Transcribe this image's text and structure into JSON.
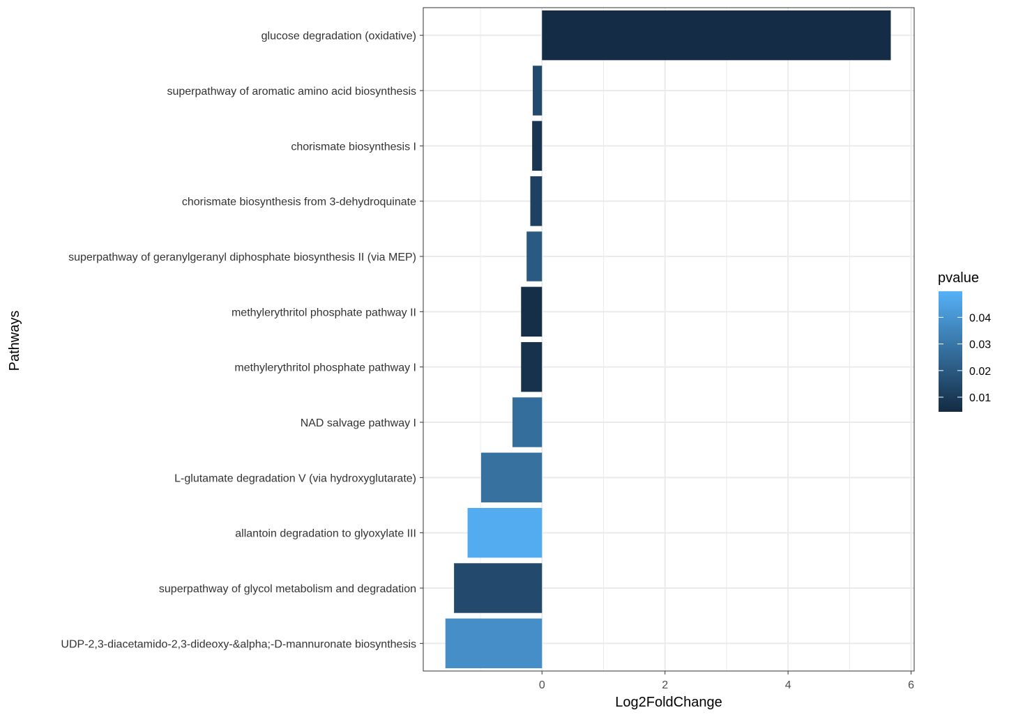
{
  "chart_data": {
    "type": "bar",
    "orientation": "horizontal",
    "xlabel": "Log2FoldChange",
    "ylabel": "Pathways",
    "xlim": [
      -1.93,
      6.05
    ],
    "xticks": [
      0,
      2,
      4,
      6
    ],
    "grid": true,
    "legend": {
      "title": "pvalue",
      "placement": "right",
      "range": [
        0.0045,
        0.0498
      ],
      "breaks": [
        0.01,
        0.02,
        0.03,
        0.04
      ],
      "break_labels": [
        "0.01",
        "0.02",
        "0.03",
        "0.04"
      ],
      "color_low": "#132b43",
      "color_high": "#56b1f7"
    },
    "categories": [
      "glucose degradation (oxidative)",
      "superpathway of aromatic amino acid biosynthesis",
      "chorismate biosynthesis I",
      "chorismate biosynthesis from 3-dehydroquinate",
      "superpathway of geranylgeranyl diphosphate biosynthesis II (via MEP)",
      "methylerythritol phosphate pathway II",
      "methylerythritol phosphate pathway I",
      "NAD salvage pathway I",
      "L-glutamate degradation V (via hydroxyglutarate)",
      "allantoin degradation to glyoxylate III",
      "superpathway of glycol metabolism and degradation",
      "UDP-2,3-diacetamido-2,3-dideoxy-&alpha;-D-mannuronate biosynthesis"
    ],
    "values": [
      5.67,
      -0.15,
      -0.16,
      -0.19,
      -0.25,
      -0.34,
      -0.34,
      -0.48,
      -0.99,
      -1.21,
      -1.43,
      -1.57
    ],
    "pvalues": [
      0.005,
      0.015,
      0.008,
      0.012,
      0.02,
      0.006,
      0.007,
      0.027,
      0.028,
      0.048,
      0.015,
      0.038
    ]
  }
}
